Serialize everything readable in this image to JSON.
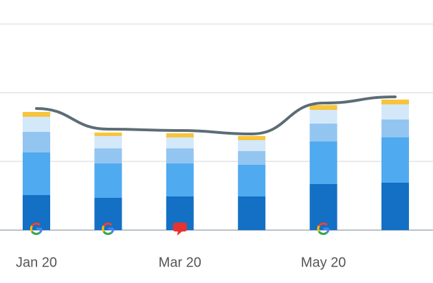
{
  "chart_data": {
    "type": "bar",
    "stacked": true,
    "categories": [
      "Jan 20",
      null,
      "Mar 20",
      null,
      "May 20",
      null
    ],
    "series": [
      {
        "color": "#1470c4",
        "values": [
          0.51,
          0.47,
          0.49,
          0.49,
          0.67,
          0.69
        ]
      },
      {
        "color": "#4faaf0",
        "values": [
          0.62,
          0.5,
          0.48,
          0.46,
          0.62,
          0.66
        ]
      },
      {
        "color": "#93c5f1",
        "values": [
          0.3,
          0.22,
          0.22,
          0.2,
          0.26,
          0.26
        ]
      },
      {
        "color": "#d3e8f9",
        "values": [
          0.22,
          0.18,
          0.16,
          0.16,
          0.2,
          0.22
        ]
      },
      {
        "color": "#f7c43c",
        "values": [
          0.07,
          0.05,
          0.06,
          0.06,
          0.07,
          0.07
        ]
      }
    ],
    "line": {
      "color": "#5b6d76",
      "values": [
        1.77,
        1.47,
        1.45,
        1.4,
        1.85,
        1.94
      ]
    },
    "ylim": [
      0,
      3.35
    ],
    "yticks": [
      0,
      1,
      2,
      3
    ],
    "grid": true
  }
}
